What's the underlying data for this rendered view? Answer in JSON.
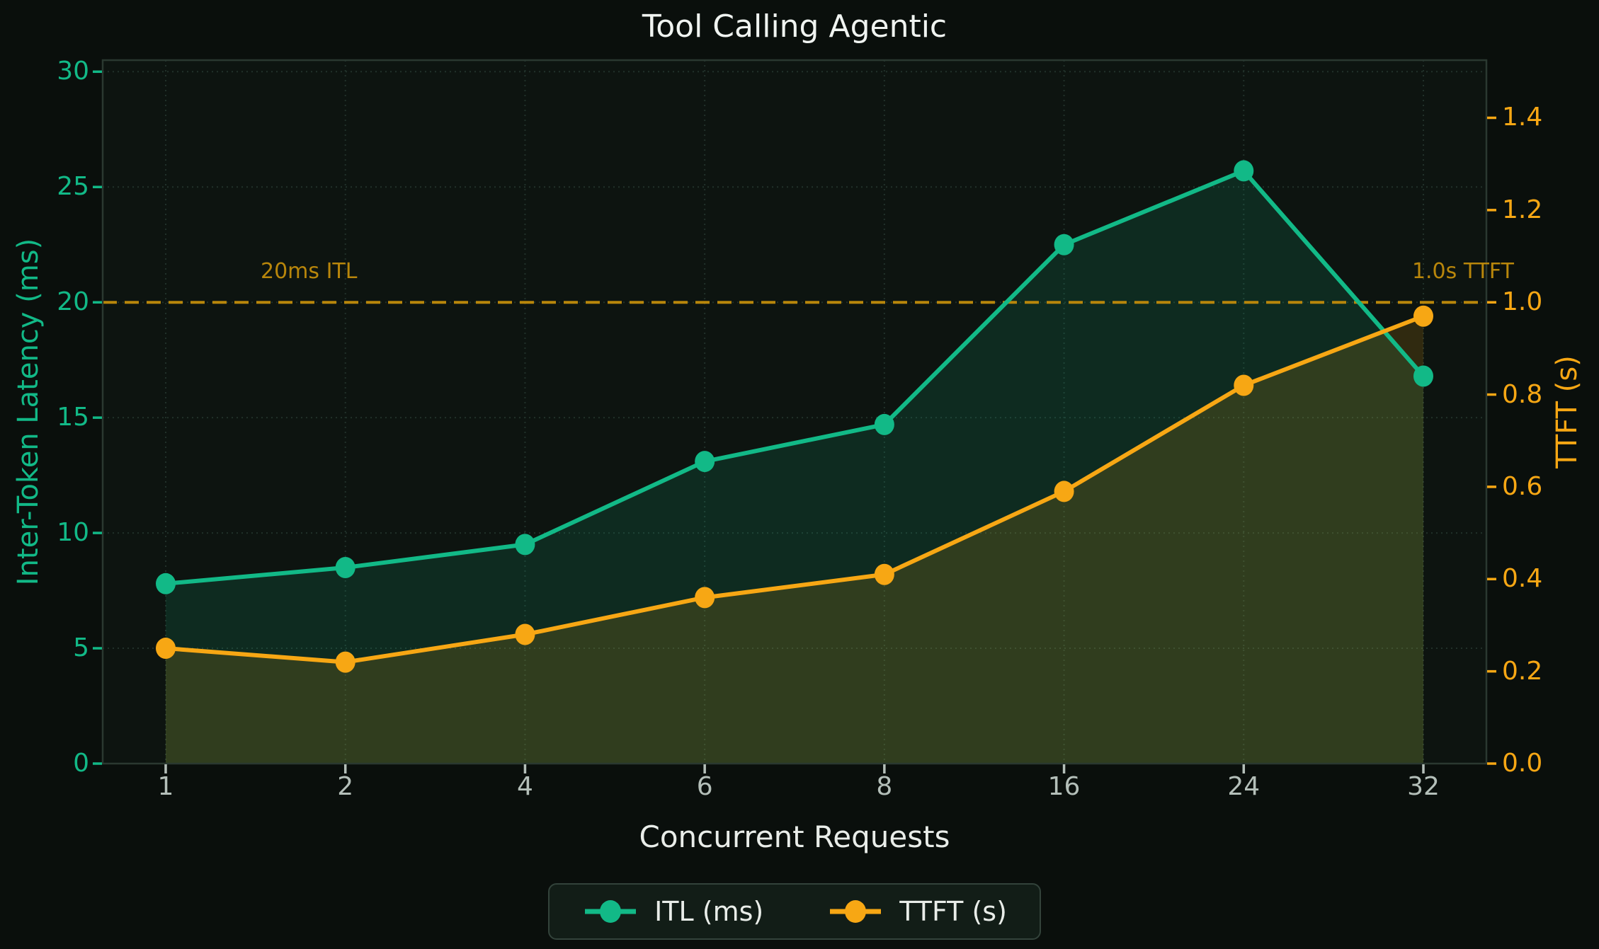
{
  "chart_data": {
    "type": "line",
    "title": "Tool Calling Agentic",
    "xlabel": "Concurrent Requests",
    "ylabel_left": "Inter-Token Latency (ms)",
    "ylabel_right": "TTFT (s)",
    "categories": [
      "1",
      "2",
      "4",
      "6",
      "8",
      "16",
      "24",
      "32"
    ],
    "series": [
      {
        "name": "ITL (ms)",
        "axis": "left",
        "color": "#12b987",
        "marker": "circle",
        "values": [
          7.8,
          8.5,
          9.5,
          13.1,
          14.7,
          22.5,
          25.7,
          16.8
        ]
      },
      {
        "name": "TTFT (s)",
        "axis": "right",
        "color": "#f7a714",
        "marker": "circle",
        "values": [
          0.25,
          0.22,
          0.28,
          0.36,
          0.41,
          0.59,
          0.82,
          0.97
        ]
      }
    ],
    "yticks_left": [
      "0",
      "5",
      "10",
      "15",
      "20",
      "25",
      "30"
    ],
    "yticks_right": [
      "0.0",
      "0.2",
      "0.4",
      "0.6",
      "0.8",
      "1.0",
      "1.2",
      "1.4"
    ],
    "ylim_left": [
      0,
      30.5
    ],
    "ylim_right": [
      0,
      1.525
    ],
    "grid": true,
    "legend_position": "bottom-center",
    "threshold": {
      "left_label": "20ms ITL",
      "right_label": "1.0s TTFT",
      "value_left": 20,
      "value_right": 1.0,
      "style": "dashed",
      "color": "#b8860b"
    }
  },
  "colors": {
    "background": "#0a0f0c",
    "plot_background": "#0d1410",
    "grid": "#21312a",
    "spine": "#2a3830",
    "title_text": "#f0f4f1",
    "xtick_text": "#b4bfb9",
    "xlabel_text": "#e9ede9",
    "itl_accent": "#12b987",
    "ttft_accent": "#f7a714",
    "threshold_accent": "#b8860b",
    "area_itl": "rgba(18,185,135,0.14)",
    "area_ttft": "rgba(247,167,20,0.15)",
    "legend_background": "#121d17",
    "legend_border": "#33433b",
    "legend_text": "#e9ede9"
  }
}
